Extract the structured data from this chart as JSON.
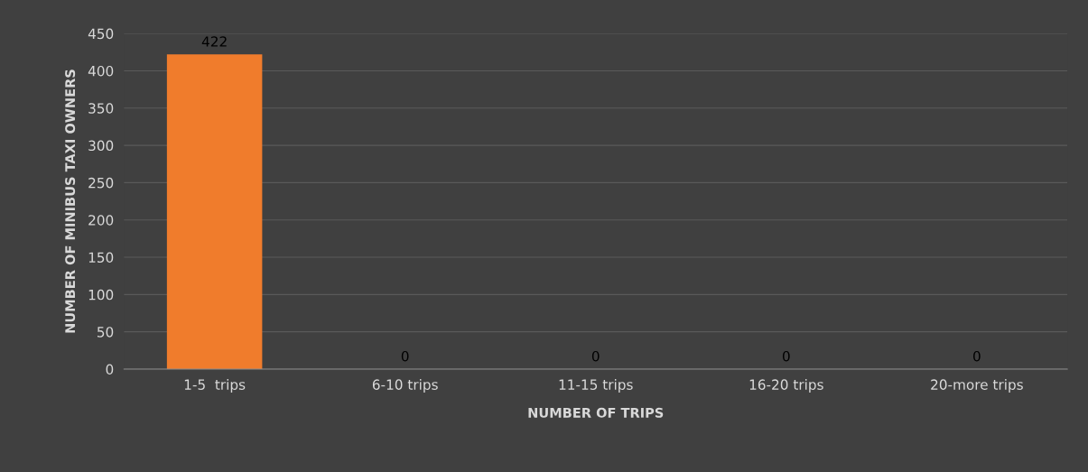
{
  "chart_data": {
    "type": "bar",
    "xlabel": "NUMBER OF TRIPS",
    "ylabel": "NUMBER OF MINIBUS TAXI OWNERS",
    "categories": [
      "1-5  trips",
      "6-10 trips",
      "11-15 trips",
      "16-20 trips",
      "20-more trips"
    ],
    "values": [
      422,
      0,
      0,
      0,
      0
    ],
    "color": "#f07c2c",
    "ylim": [
      0,
      450
    ],
    "yticks": [
      0,
      50,
      100,
      150,
      200,
      250,
      300,
      350,
      400,
      450
    ],
    "grid": "y",
    "data_labels": true
  }
}
